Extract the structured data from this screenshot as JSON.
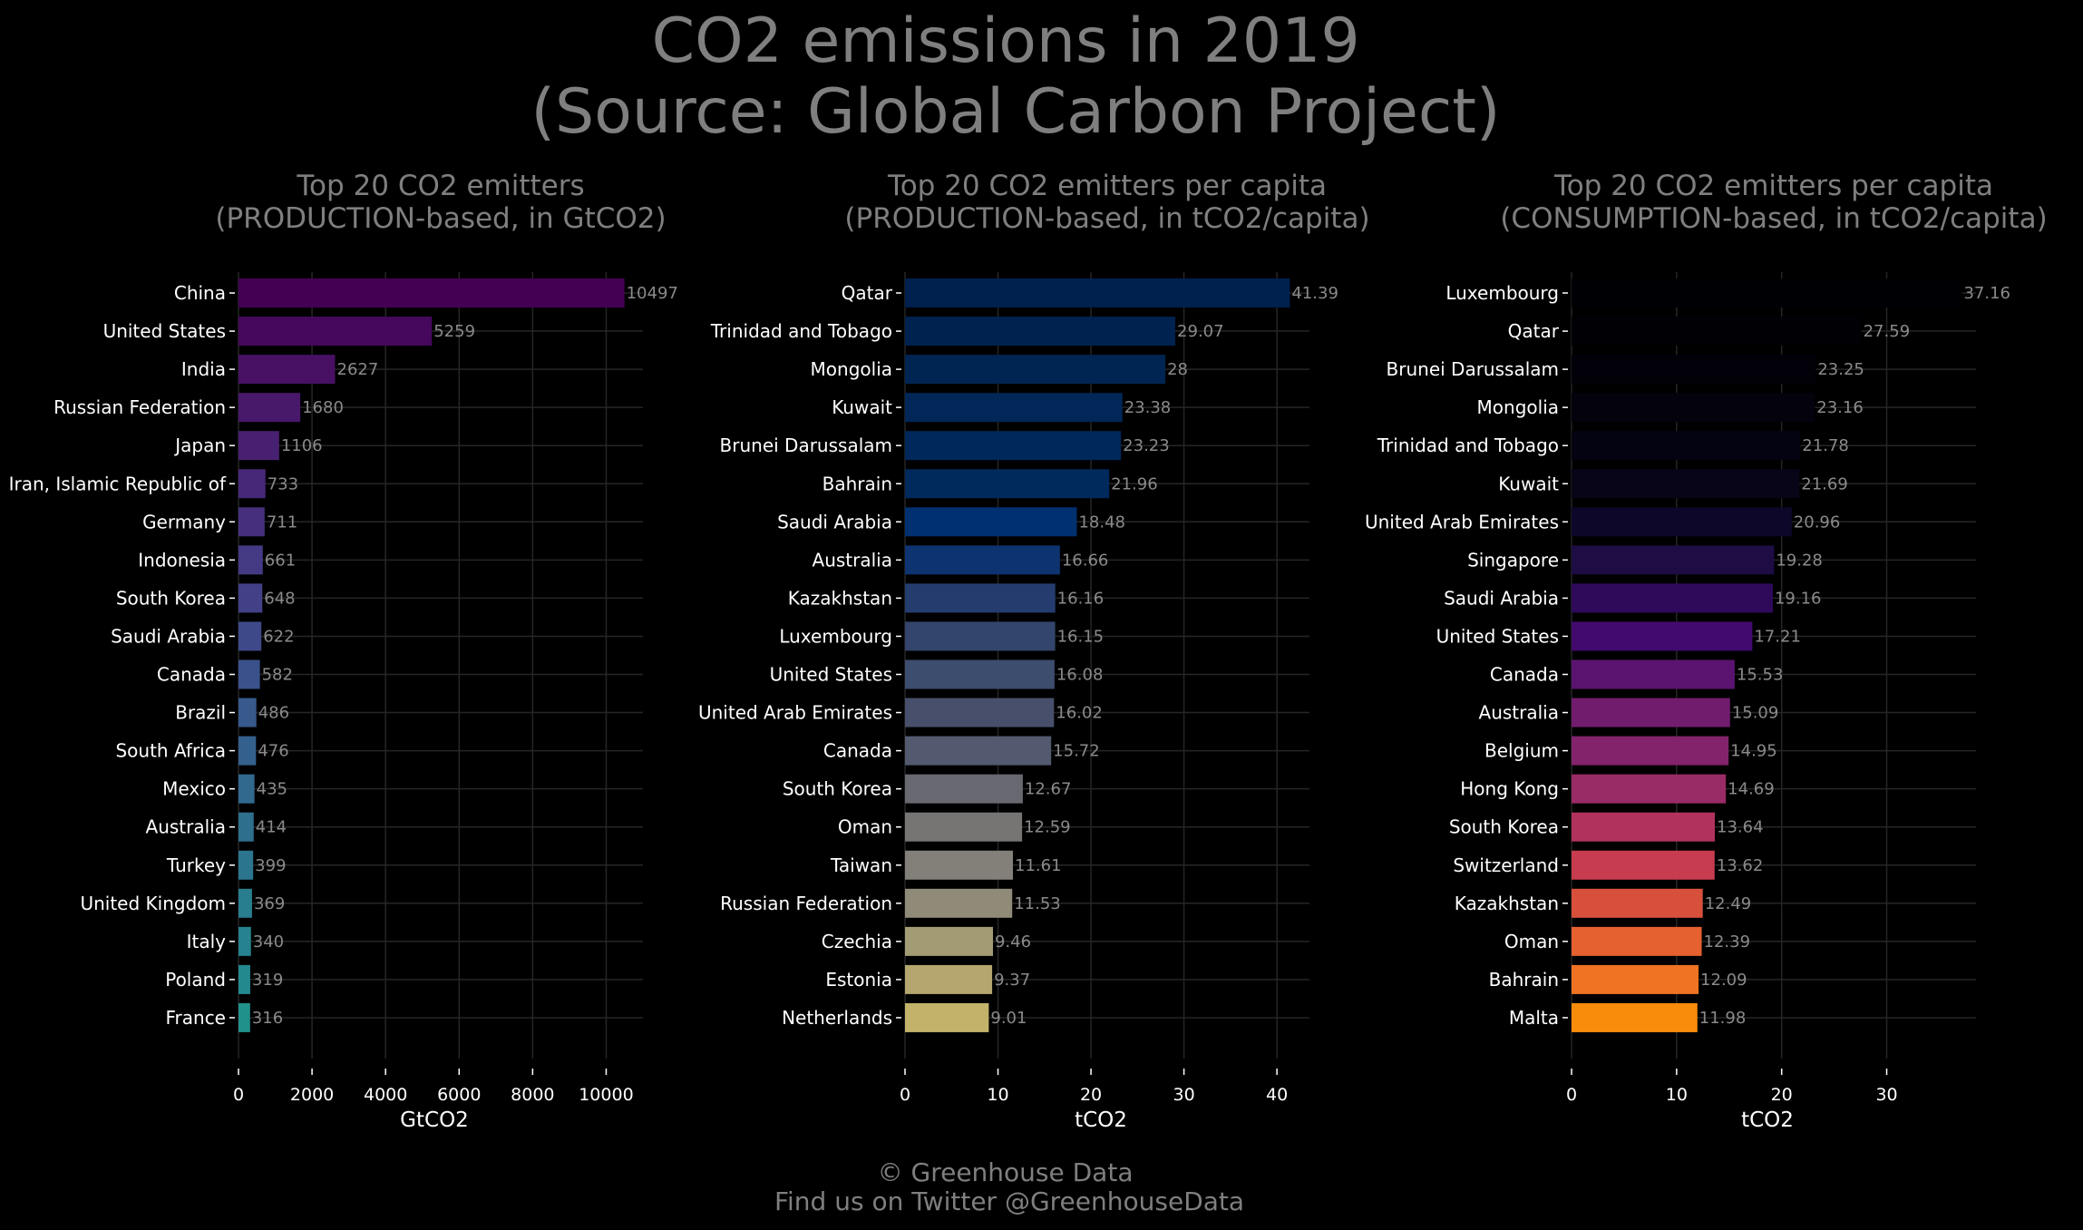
{
  "title_lines": [
    "CO2 emissions in 2019",
    "(Source: Global Carbon Project)"
  ],
  "footer_lines": [
    "© Greenhouse Data",
    "Find us on Twitter @GreenhouseData"
  ],
  "chart_data": [
    {
      "type": "bar",
      "orientation": "horizontal",
      "title_lines": [
        "Top 20 CO2 emitters",
        "(PRODUCTION-based, in GtCO2)"
      ],
      "xlabel": "GtCO2",
      "ylabel": "",
      "xlim": [
        0,
        11000
      ],
      "xticks": [
        0,
        2000,
        4000,
        6000,
        8000,
        10000
      ],
      "grid": true,
      "categories": [
        "China",
        "United States",
        "India",
        "Russian Federation",
        "Japan",
        "Iran, Islamic Republic of",
        "Germany",
        "Indonesia",
        "South Korea",
        "Saudi Arabia",
        "Canada",
        "Brazil",
        "South Africa",
        "Mexico",
        "Australia",
        "Turkey",
        "United Kingdom",
        "Italy",
        "Poland",
        "France"
      ],
      "values": [
        10497,
        5259,
        2627,
        1680,
        1106,
        733,
        711,
        661,
        648,
        622,
        582,
        486,
        476,
        435,
        414,
        399,
        369,
        340,
        319,
        316
      ],
      "value_labels": [
        "10497",
        "5259",
        "2627",
        "1680",
        "1106",
        "733",
        "711",
        "661",
        "648",
        "622",
        "582",
        "486",
        "476",
        "435",
        "414",
        "399",
        "369",
        "340",
        "319",
        "316"
      ],
      "colors": [
        "#440154",
        "#46085c",
        "#471063",
        "#48186a",
        "#482071",
        "#472878",
        "#46307e",
        "#443983",
        "#424086",
        "#3e4989",
        "#3b518b",
        "#38598c",
        "#34608d",
        "#31688e",
        "#2e6f8e",
        "#2b758e",
        "#287d8e",
        "#26828e",
        "#23898e",
        "#21918c"
      ]
    },
    {
      "type": "bar",
      "orientation": "horizontal",
      "title_lines": [
        "Top 20 CO2 emitters per capita",
        "(PRODUCTION-based, in tCO2/capita)"
      ],
      "xlabel": "tCO2",
      "ylabel": "",
      "xlim": [
        0,
        43.5
      ],
      "xticks": [
        0,
        10,
        20,
        30,
        40
      ],
      "grid": true,
      "categories": [
        "Qatar",
        "Trinidad and Tobago",
        "Mongolia",
        "Kuwait",
        "Brunei Darussalam",
        "Bahrain",
        "Saudi Arabia",
        "Australia",
        "Kazakhstan",
        "Luxembourg",
        "United States",
        "United Arab Emirates",
        "Canada",
        "South Korea",
        "Oman",
        "Taiwan",
        "Russian Federation",
        "Czechia",
        "Estonia",
        "Netherlands"
      ],
      "values": [
        41.39,
        29.07,
        28,
        23.38,
        23.23,
        21.96,
        18.48,
        16.66,
        16.16,
        16.15,
        16.08,
        16.02,
        15.72,
        12.67,
        12.59,
        11.61,
        11.53,
        9.46,
        9.37,
        9.01
      ],
      "value_labels": [
        "41.39",
        "29.07",
        "28",
        "23.38",
        "23.23",
        "21.96",
        "18.48",
        "16.66",
        "16.16",
        "16.15",
        "16.08",
        "16.02",
        "15.72",
        "12.67",
        "12.59",
        "11.61",
        "11.53",
        "9.46",
        "9.37",
        "9.01"
      ],
      "colors": [
        "#00204d",
        "#00224e",
        "#002552",
        "#002757",
        "#00285a",
        "#00295c",
        "#00306f",
        "#0d3371",
        "#243d6e",
        "#33456c",
        "#3d4d6e",
        "#474f6b",
        "#535a6f",
        "#676870",
        "#767573",
        "#838079",
        "#908a78",
        "#a39b74",
        "#b4a66e",
        "#c2b26a"
      ]
    },
    {
      "type": "bar",
      "orientation": "horizontal",
      "title_lines": [
        "Top 20 CO2 emitters per capita",
        "(CONSUMPTION-based, in tCO2/capita)"
      ],
      "xlabel": "tCO2",
      "ylabel": "",
      "xlim": [
        0,
        38.5
      ],
      "xticks": [
        0,
        10,
        20,
        30
      ],
      "grid": true,
      "categories": [
        "Luxembourg",
        "Qatar",
        "Brunei Darussalam",
        "Mongolia",
        "Trinidad and Tobago",
        "Kuwait",
        "United Arab Emirates",
        "Singapore",
        "Saudi Arabia",
        "United States",
        "Canada",
        "Australia",
        "Belgium",
        "Hong Kong",
        "South Korea",
        "Switzerland",
        "Kazakhstan",
        "Oman",
        "Bahrain",
        "Malta"
      ],
      "values": [
        37.16,
        27.59,
        23.25,
        23.16,
        21.78,
        21.69,
        20.96,
        19.28,
        19.16,
        17.21,
        15.53,
        15.09,
        14.95,
        14.69,
        13.64,
        13.62,
        12.49,
        12.39,
        12.09,
        11.98
      ],
      "value_labels": [
        "37.16",
        "27.59",
        "23.25",
        "23.16",
        "21.78",
        "21.69",
        "20.96",
        "19.28",
        "19.16",
        "17.21",
        "15.53",
        "15.09",
        "14.95",
        "14.69",
        "13.64",
        "13.62",
        "12.49",
        "12.39",
        "12.09",
        "11.98"
      ],
      "colors": [
        "#000004",
        "#010005",
        "#02010a",
        "#03020d",
        "#040312",
        "#070517",
        "#0d0829",
        "#1e0c45",
        "#2f0a5b",
        "#430a6e",
        "#5b1370",
        "#721c6e",
        "#83236b",
        "#992b66",
        "#b2325e",
        "#c73c4e",
        "#d8503c",
        "#e5612f",
        "#ef7322",
        "#f98c0a"
      ]
    }
  ]
}
